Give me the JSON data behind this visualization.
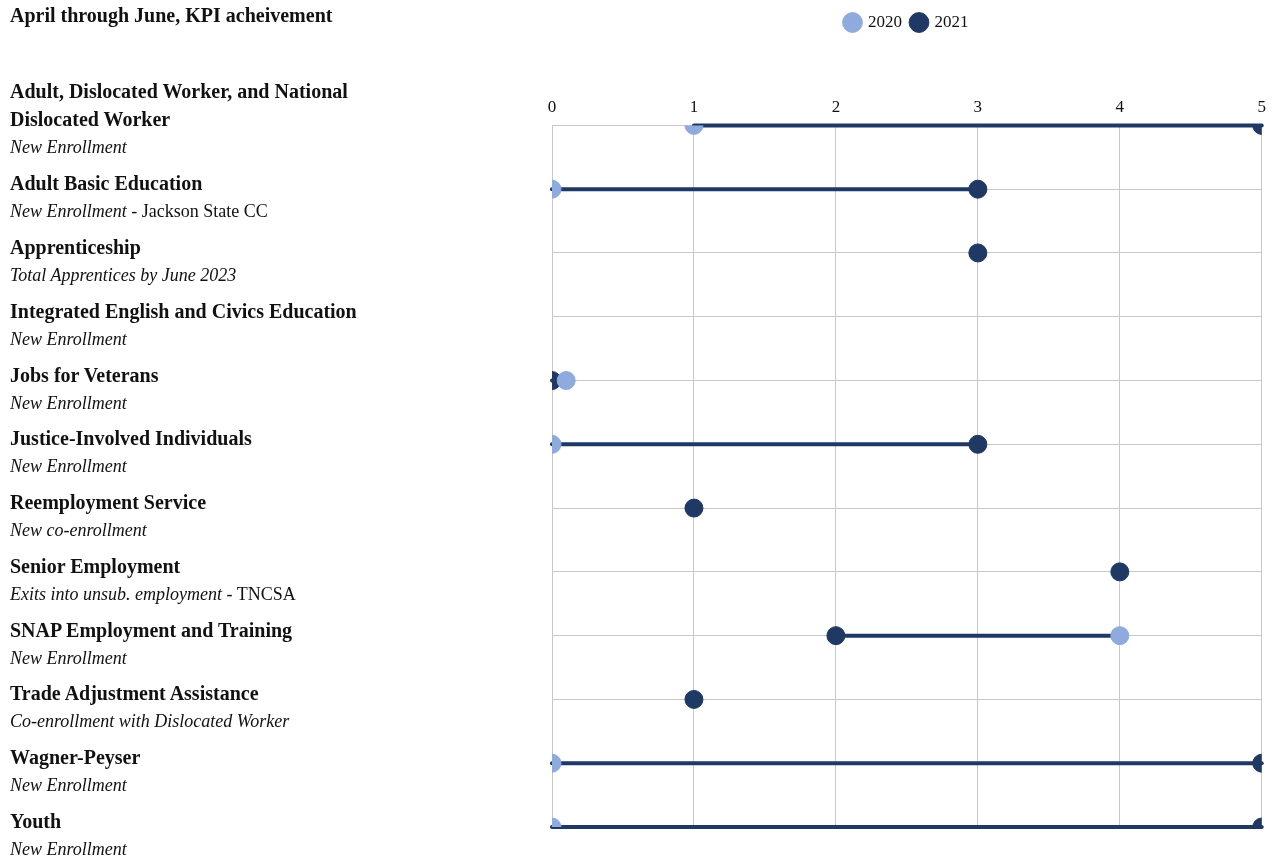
{
  "chart_data": {
    "type": "scatter",
    "title": "April through June, KPI acheivement",
    "orientation": "horizontal",
    "categories": [
      "Adult, Dislocated Worker, and National Dislocated Worker\nNew Enrollment",
      "Adult Basic Education\nNew Enrollment - Jackson State CC",
      "Apprenticeship\nTotal Apprentices by June 2023",
      "Integrated English and Civics Education\nNew Enrollment",
      "Jobs for Veterans\nNew Enrollment",
      "Justice-Involved Individuals\nNew Enrollment",
      "Reemployment Service\nNew co-enrollment",
      "Senior Employment\nExits into unsub. employment - TNCSA",
      "SNAP Employment and Training\nNew Enrollment",
      "Trade Adjustment Assistance\nCo-enrollment with Dislocated Worker",
      "Wagner-Peyser\nNew Enrollment",
      "Youth\nNew Enrollment"
    ],
    "series": [
      {
        "name": "2020",
        "axis": "x2",
        "color": "#8faadc",
        "values": [
          1,
          0,
          null,
          null,
          0.1,
          0,
          null,
          null,
          4,
          null,
          0,
          0
        ]
      },
      {
        "name": "2021",
        "axis": "x2",
        "color": "#203864",
        "values": [
          5,
          3,
          3,
          null,
          0,
          3,
          1,
          4,
          2,
          1,
          5,
          5
        ]
      }
    ],
    "x2lim": [
      0,
      5
    ],
    "x2ticks": [
      0,
      1,
      2,
      3,
      4,
      5
    ],
    "grid": true,
    "legend": "top",
    "marker": "circle"
  }
}
